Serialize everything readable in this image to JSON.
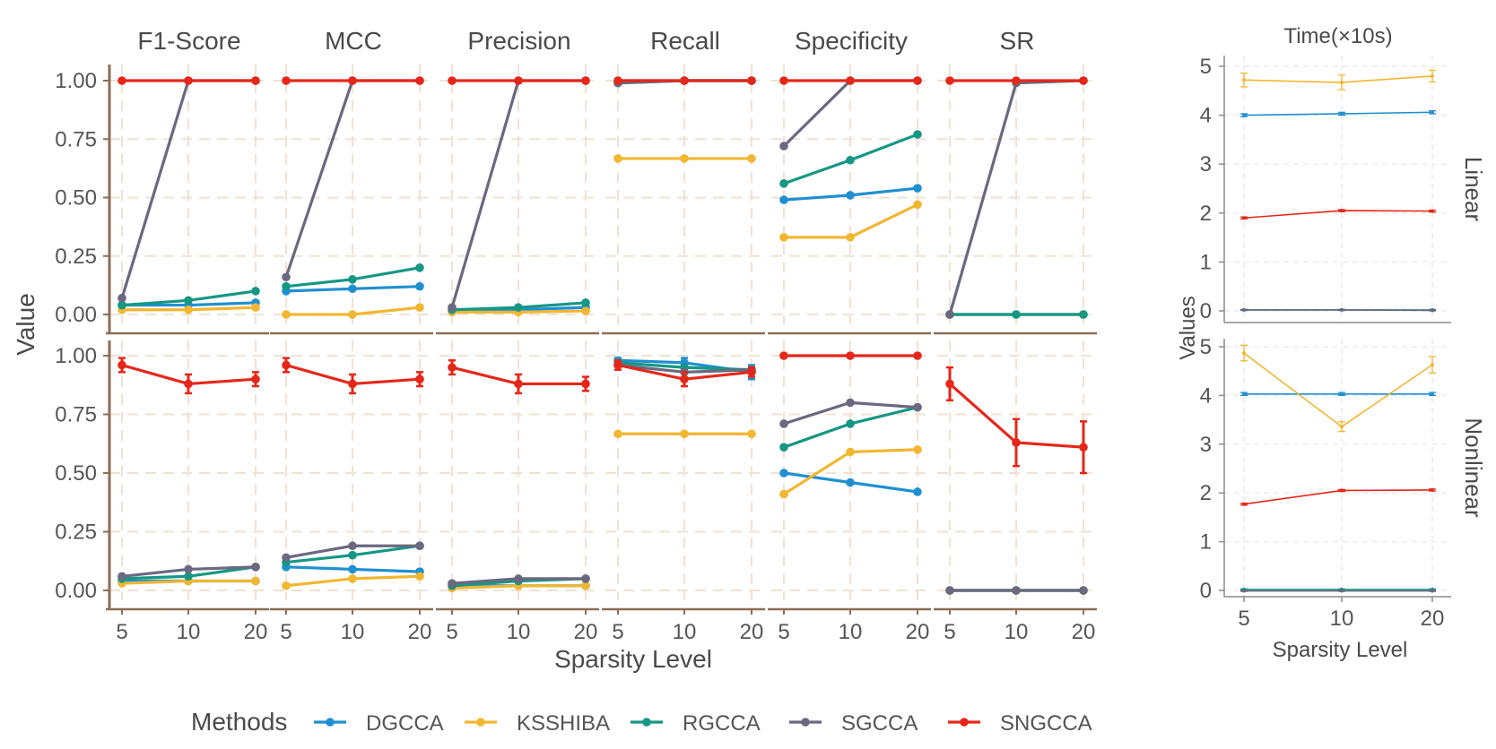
{
  "colors": {
    "DGCCA": "#1f8fd1",
    "KSSHIBA": "#f2b631",
    "RGCCA": "#159784",
    "SGCCA": "#6b6880",
    "SNGCCA": "#e5271a",
    "grid": "#f0e2d3",
    "axis": "#8b6e55",
    "text": "#555555",
    "panel_axis": "#8c8c8c"
  },
  "chart_data": [
    {
      "type": "line",
      "name": "metrics",
      "x_categories": [
        "5",
        "10",
        "20"
      ],
      "xlabel": "Sparsity Level",
      "ylabel": "Value",
      "ylim": [
        0,
        1
      ],
      "y_ticks": [
        "0.00",
        "0.25",
        "0.50",
        "0.75",
        "1.00"
      ],
      "grid": true,
      "facet_columns": [
        "F1-Score",
        "MCC",
        "Precision",
        "Recall",
        "Specificity",
        "SR"
      ],
      "facet_rows": [
        "Linear",
        "Nonlinear"
      ],
      "methods": [
        "DGCCA",
        "KSSHIBA",
        "RGCCA",
        "SGCCA",
        "SNGCCA"
      ],
      "legend_title": "Methods",
      "legend_position": "bottom",
      "values": {
        "Linear": {
          "F1-Score": {
            "DGCCA": [
              0.04,
              0.04,
              0.05
            ],
            "KSSHIBA": [
              0.02,
              0.02,
              0.03
            ],
            "RGCCA": [
              0.04,
              0.06,
              0.1
            ],
            "SGCCA": [
              0.07,
              1.0,
              1.0
            ],
            "SNGCCA": [
              1.0,
              1.0,
              1.0
            ]
          },
          "MCC": {
            "DGCCA": [
              0.1,
              0.11,
              0.12
            ],
            "KSSHIBA": [
              0.0,
              0.0,
              0.03
            ],
            "RGCCA": [
              0.12,
              0.15,
              0.2
            ],
            "SGCCA": [
              0.16,
              1.0,
              1.0
            ],
            "SNGCCA": [
              1.0,
              1.0,
              1.0
            ]
          },
          "Precision": {
            "DGCCA": [
              0.02,
              0.02,
              0.03
            ],
            "KSSHIBA": [
              0.01,
              0.01,
              0.015
            ],
            "RGCCA": [
              0.02,
              0.03,
              0.05
            ],
            "SGCCA": [
              0.03,
              1.0,
              1.0
            ],
            "SNGCCA": [
              1.0,
              1.0,
              1.0
            ]
          },
          "Recall": {
            "DGCCA": [
              0.99,
              1.0,
              1.0
            ],
            "KSSHIBA": [
              0.667,
              0.667,
              0.667
            ],
            "RGCCA": [
              1.0,
              1.0,
              1.0
            ],
            "SGCCA": [
              0.99,
              1.0,
              1.0
            ],
            "SNGCCA": [
              1.0,
              1.0,
              1.0
            ]
          },
          "Specificity": {
            "DGCCA": [
              0.49,
              0.51,
              0.54
            ],
            "KSSHIBA": [
              0.33,
              0.33,
              0.47
            ],
            "RGCCA": [
              0.56,
              0.66,
              0.77
            ],
            "SGCCA": [
              0.72,
              1.0,
              1.0
            ],
            "SNGCCA": [
              1.0,
              1.0,
              1.0
            ]
          },
          "SR": {
            "DGCCA": [
              0.0,
              0.0,
              0.0
            ],
            "KSSHIBA": [
              0.0,
              0.0,
              0.0
            ],
            "RGCCA": [
              0.0,
              0.0,
              0.0
            ],
            "SGCCA": [
              0.0,
              0.99,
              1.0
            ],
            "SNGCCA": [
              1.0,
              1.0,
              1.0
            ]
          }
        },
        "Nonlinear": {
          "F1-Score": {
            "DGCCA": [
              0.04,
              0.04,
              0.04
            ],
            "KSSHIBA": [
              0.03,
              0.04,
              0.04
            ],
            "RGCCA": [
              0.05,
              0.06,
              0.1
            ],
            "SGCCA": [
              0.06,
              0.09,
              0.1
            ],
            "SNGCCA": [
              0.96,
              0.88,
              0.9
            ]
          },
          "MCC": {
            "DGCCA": [
              0.1,
              0.09,
              0.08
            ],
            "KSSHIBA": [
              0.02,
              0.05,
              0.06
            ],
            "RGCCA": [
              0.12,
              0.15,
              0.19
            ],
            "SGCCA": [
              0.14,
              0.19,
              0.19
            ],
            "SNGCCA": [
              0.96,
              0.88,
              0.9
            ]
          },
          "Precision": {
            "DGCCA": [
              0.02,
              0.02,
              0.02
            ],
            "KSSHIBA": [
              0.01,
              0.02,
              0.02
            ],
            "RGCCA": [
              0.02,
              0.04,
              0.05
            ],
            "SGCCA": [
              0.03,
              0.05,
              0.05
            ],
            "SNGCCA": [
              0.95,
              0.88,
              0.88
            ]
          },
          "Recall": {
            "DGCCA": [
              0.98,
              0.97,
              0.93
            ],
            "KSSHIBA": [
              0.667,
              0.667,
              0.667
            ],
            "RGCCA": [
              0.97,
              0.95,
              0.94
            ],
            "SGCCA": [
              0.96,
              0.93,
              0.94
            ],
            "SNGCCA": [
              0.96,
              0.9,
              0.93
            ]
          },
          "Specificity": {
            "DGCCA": [
              0.5,
              0.46,
              0.42
            ],
            "KSSHIBA": [
              0.41,
              0.59,
              0.6
            ],
            "RGCCA": [
              0.61,
              0.71,
              0.78
            ],
            "SGCCA": [
              0.71,
              0.8,
              0.78
            ],
            "SNGCCA": [
              1.0,
              1.0,
              1.0
            ]
          },
          "SR": {
            "DGCCA": [
              0.0,
              0.0,
              0.0
            ],
            "KSSHIBA": [
              0.0,
              0.0,
              0.0
            ],
            "RGCCA": [
              0.0,
              0.0,
              0.0
            ],
            "SGCCA": [
              0.0,
              0.0,
              0.0
            ],
            "SNGCCA": [
              0.88,
              0.63,
              0.61
            ]
          }
        }
      },
      "error_bars": {
        "Nonlinear": {
          "F1-Score": {
            "SNGCCA": [
              0.03,
              0.04,
              0.03
            ]
          },
          "MCC": {
            "SNGCCA": [
              0.03,
              0.04,
              0.03
            ]
          },
          "Precision": {
            "SNGCCA": [
              0.03,
              0.04,
              0.03
            ]
          },
          "Recall": {
            "DGCCA": [
              0.01,
              0.02,
              0.03
            ],
            "SNGCCA": [
              0.02,
              0.03,
              0.02
            ]
          },
          "SR": {
            "SNGCCA": [
              0.07,
              0.1,
              0.11
            ]
          }
        }
      }
    },
    {
      "type": "line",
      "name": "time",
      "title": "Time(×10s)",
      "x_categories": [
        "5",
        "10",
        "20"
      ],
      "xlabel": "Sparsity Level",
      "ylabel": "Values",
      "ylim": [
        -0.1,
        5.2
      ],
      "y_ticks": [
        "0",
        "1",
        "2",
        "3",
        "4",
        "5"
      ],
      "grid": true,
      "facet_rows": [
        "Linear",
        "Nonlinear"
      ],
      "values": {
        "Linear": {
          "DGCCA": [
            4.0,
            4.03,
            4.06
          ],
          "KSSHIBA": [
            4.72,
            4.67,
            4.8
          ],
          "RGCCA": [
            0.02,
            0.02,
            0.02
          ],
          "SGCCA": [
            0.02,
            0.02,
            0.01
          ],
          "SNGCCA": [
            1.9,
            2.05,
            2.04
          ]
        },
        "Nonlinear": {
          "DGCCA": [
            4.03,
            4.03,
            4.03
          ],
          "KSSHIBA": [
            4.87,
            3.36,
            4.63
          ],
          "RGCCA": [
            0.02,
            0.02,
            0.02
          ],
          "SGCCA": [
            -0.01,
            -0.01,
            -0.01
          ],
          "SNGCCA": [
            1.77,
            2.05,
            2.06
          ]
        }
      },
      "error_bars": {
        "Linear": {
          "DGCCA": [
            0.03,
            0.03,
            0.03
          ],
          "KSSHIBA": [
            0.14,
            0.15,
            0.12
          ],
          "RGCCA": [
            0.01,
            0.01,
            0.01
          ],
          "SGCCA": [
            0.01,
            0.01,
            0.01
          ],
          "SNGCCA": [
            0.02,
            0.02,
            0.02
          ]
        },
        "Nonlinear": {
          "DGCCA": [
            0.03,
            0.03,
            0.03
          ],
          "KSSHIBA": [
            0.16,
            0.1,
            0.17
          ],
          "RGCCA": [
            0.01,
            0.01,
            0.01
          ],
          "SGCCA": [
            0.01,
            0.01,
            0.01
          ],
          "SNGCCA": [
            0.02,
            0.02,
            0.02
          ]
        }
      }
    }
  ]
}
